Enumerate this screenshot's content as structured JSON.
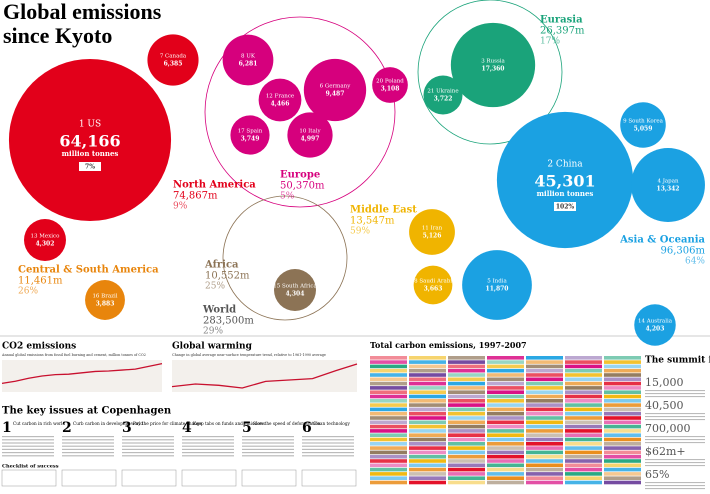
{
  "header": {
    "title_line1": "Global emissions",
    "title_line2": "since Kyoto"
  },
  "chart_data": [
    {
      "type": "bubble",
      "categories": [
        "1 US",
        "7 Canada",
        "13 Mexico",
        "8 UK",
        "6 Germany",
        "12 France",
        "10 Italy",
        "17 Spain",
        "20 Poland",
        "3 Russia",
        "21 Ukraine",
        "2 China",
        "4 Japan",
        "9 South Korea",
        "5 India",
        "14 Australia",
        "11 Iran",
        "18 Saudi Arabia",
        "16 Brazil",
        "15 South Africa"
      ],
      "values": [
        64166,
        6385,
        4302,
        6281,
        9487,
        4466,
        4997,
        3749,
        3108,
        17360,
        3722,
        45301,
        13342,
        5059,
        11870,
        4203,
        5126,
        3663,
        3883,
        4304
      ],
      "value_labels": [
        "64,166",
        "6,385",
        "4,302",
        "6,281",
        "9,487",
        "4,466",
        "4,997",
        "3,749",
        "3,108",
        "17,360",
        "3,722",
        "45,301",
        "13,342",
        "5,059",
        "11,870",
        "4,203",
        "5,126",
        "3,663",
        "3,883",
        "4,304"
      ],
      "colors": [
        "#e2001a",
        "#e2001a",
        "#e2001a",
        "#d6007d",
        "#d6007d",
        "#d6007d",
        "#d6007d",
        "#d6007d",
        "#d6007d",
        "#1aa37a",
        "#1aa37a",
        "#1ba1e2",
        "#1ba1e2",
        "#1ba1e2",
        "#1ba1e2",
        "#1ba1e2",
        "#f0b400",
        "#f0b400",
        "#e8850c",
        "#8c7355"
      ],
      "us_note": {
        "unit": "million tonnes",
        "change": "7%"
      },
      "china_note": {
        "unit": "million tonnes",
        "change": "102%"
      }
    },
    {
      "type": "line",
      "title": "CO2 emissions",
      "subtitle": "Annual global emissions from fossil fuel burning and cement, million tonnes of CO2",
      "x": [
        1960,
        1964,
        1968,
        1972,
        1976,
        1980,
        1984,
        1988,
        1992,
        1996,
        2000,
        2004,
        2008
      ],
      "values": [
        9400,
        11800,
        15000,
        17500,
        19000,
        19500,
        21000,
        22500,
        23000,
        24000,
        25000,
        28000,
        31000
      ],
      "xlim": [
        1960,
        2008
      ],
      "ylim": [
        0,
        35000
      ],
      "color": "#c8102e"
    },
    {
      "type": "line",
      "title": "Global warming",
      "subtitle": "Change in global average near-surface temperature trend, relative to 1961-1990 average",
      "x": [
        1850,
        1870,
        1890,
        1910,
        1930,
        1950,
        1970,
        1990,
        2008
      ],
      "values": [
        -0.4,
        -0.3,
        -0.35,
        -0.45,
        -0.2,
        -0.15,
        -0.1,
        0.2,
        0.45
      ],
      "xlim": [
        1850,
        2008
      ],
      "ylim": [
        -0.6,
        0.6
      ],
      "color": "#c8102e"
    }
  ],
  "regions": [
    {
      "name": "North America",
      "total": "74,867m",
      "change": "9%",
      "color": "#e2001a"
    },
    {
      "name": "Europe",
      "total": "50,370m",
      "change": "5%",
      "color": "#d6007d"
    },
    {
      "name": "Eurasia",
      "total": "26,397m",
      "change": "17%",
      "color": "#1aa37a"
    },
    {
      "name": "Middle East",
      "total": "13,547m",
      "change": "59%",
      "color": "#f0b400"
    },
    {
      "name": "Asia & Oceania",
      "total": "96,306m",
      "change": "64%",
      "color": "#1ba1e2"
    },
    {
      "name": "Central & South America",
      "total": "11,461m",
      "change": "26%",
      "color": "#e8850c"
    },
    {
      "name": "Africa",
      "total": "10,552m",
      "change": "25%",
      "color": "#8c7355"
    },
    {
      "name": "World",
      "total": "283,500m",
      "change": "29%",
      "color": "#555555"
    }
  ],
  "key_issues": {
    "title": "The key issues at Copenhagen",
    "items": [
      {
        "num": "1",
        "title": "Cut carbon in rich world"
      },
      {
        "num": "2",
        "title": "Curb carbon in developing world"
      },
      {
        "num": "3",
        "title": "Pay the price for climate change"
      },
      {
        "num": "4",
        "title": "Keep tabs on funds and emissions"
      },
      {
        "num": "5",
        "title": "Slow the speed of deforestation"
      },
      {
        "num": "6",
        "title": "Clean technology"
      }
    ],
    "checklist": "Checklist of success"
  },
  "table": {
    "title": "Total carbon emissions, 1997-2007"
  },
  "summit": {
    "title": "The summit in numbers",
    "figures": [
      "15,000",
      "40,500",
      "700,000",
      "$62m+",
      "65%"
    ]
  }
}
